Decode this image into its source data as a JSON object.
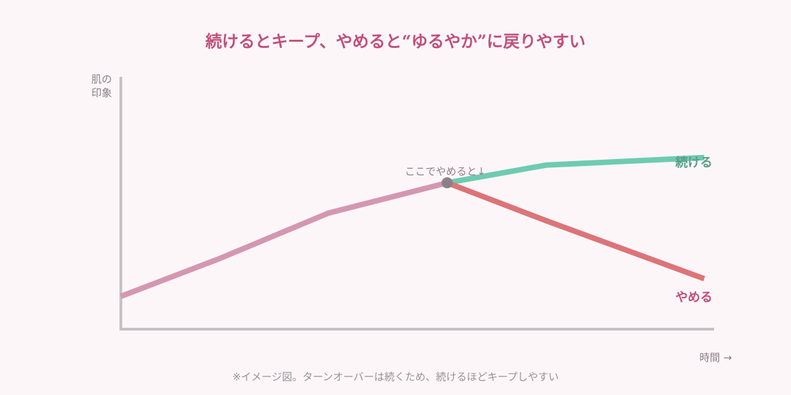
{
  "chart_data": {
    "type": "line",
    "title": "続けるとキープ、やめると“ゆるやか”に戻りやすい",
    "ylabel": [
      "肌の",
      "印象"
    ],
    "xlabel": "時間 →",
    "note": "※イメージ図。ターンオーバーは続くため、続けるほどキープしやすい",
    "xlim": [
      0,
      6
    ],
    "ylim": [
      0,
      100
    ],
    "grid": false,
    "series": [
      {
        "color": "#d497b0",
        "x": [
          0,
          1,
          2.1,
          3.3
        ],
        "values": [
          13,
          28,
          46,
          58
        ]
      },
      {
        "name": "続ける",
        "color": "#6ecbb0",
        "label_color": "#5a9e88",
        "x": [
          3.3,
          4.3,
          5.9
        ],
        "values": [
          58,
          65,
          68
        ]
      },
      {
        "name": "やめる",
        "color": "#dc7478",
        "label_color": "#c0507a",
        "x": [
          3.3,
          4.3,
          5.9
        ],
        "values": [
          58,
          43,
          20
        ]
      }
    ],
    "annotation": {
      "text": "ここでやめると↓",
      "x": 3.3,
      "y": 58,
      "color": "#8c8088"
    }
  }
}
